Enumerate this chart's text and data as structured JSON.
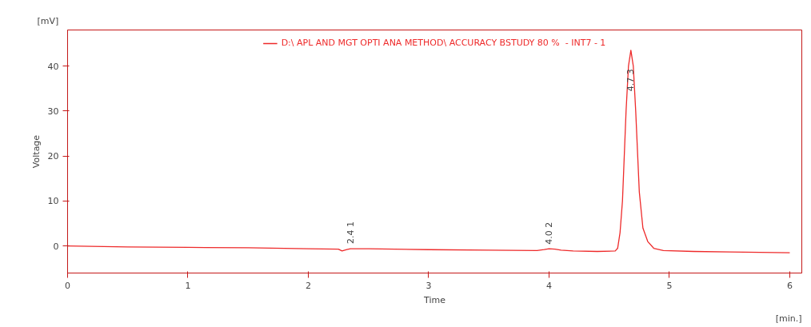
{
  "chart_data": {
    "type": "line",
    "xlabel": "Time",
    "ylabel": "Voltage",
    "annotations": [
      "[mV]",
      "[min.]",
      {
        "text": "2.4  1",
        "x": 2.35,
        "y": -0.6
      },
      {
        "text": "4.0  2",
        "x": 4.0,
        "y": -0.7
      },
      {
        "text": "4.7  3",
        "x": 4.68,
        "y": 43.5
      }
    ],
    "series": [
      {
        "name": "D:\\ APL AND MGT OPTI ANA METHOD\\ ACCURACY BSTUDY 80 %  - INT7 - 1",
        "color": "#ee2a2a",
        "x": [
          0,
          0.5,
          1,
          1.5,
          2,
          2.25,
          2.28,
          2.32,
          2.35,
          2.5,
          3,
          3.5,
          3.9,
          3.96,
          4.0,
          4.05,
          4.1,
          4.2,
          4.4,
          4.55,
          4.57,
          4.59,
          4.61,
          4.64,
          4.66,
          4.68,
          4.7,
          4.72,
          4.75,
          4.78,
          4.82,
          4.87,
          4.95,
          5.2,
          5.5,
          6.0
        ],
        "values": [
          0,
          -0.2,
          -0.3,
          -0.4,
          -0.6,
          -0.7,
          -1.1,
          -0.8,
          -0.6,
          -0.6,
          -0.8,
          -0.9,
          -1.0,
          -0.8,
          -0.6,
          -0.7,
          -0.9,
          -1.1,
          -1.2,
          -1.1,
          -0.5,
          3,
          10,
          30,
          40,
          43.5,
          40,
          30,
          12,
          4,
          1,
          -0.5,
          -1.0,
          -1.2,
          -1.3,
          -1.5
        ]
      }
    ],
    "xlim": [
      0,
      6.1
    ],
    "ylim": [
      -6,
      48
    ],
    "xticks": [
      0,
      1,
      2,
      3,
      4,
      5,
      6
    ],
    "yticks": [
      0,
      10,
      20,
      30,
      40
    ],
    "grid": false,
    "legend": "top",
    "line_style": "solid",
    "marker": "none"
  }
}
